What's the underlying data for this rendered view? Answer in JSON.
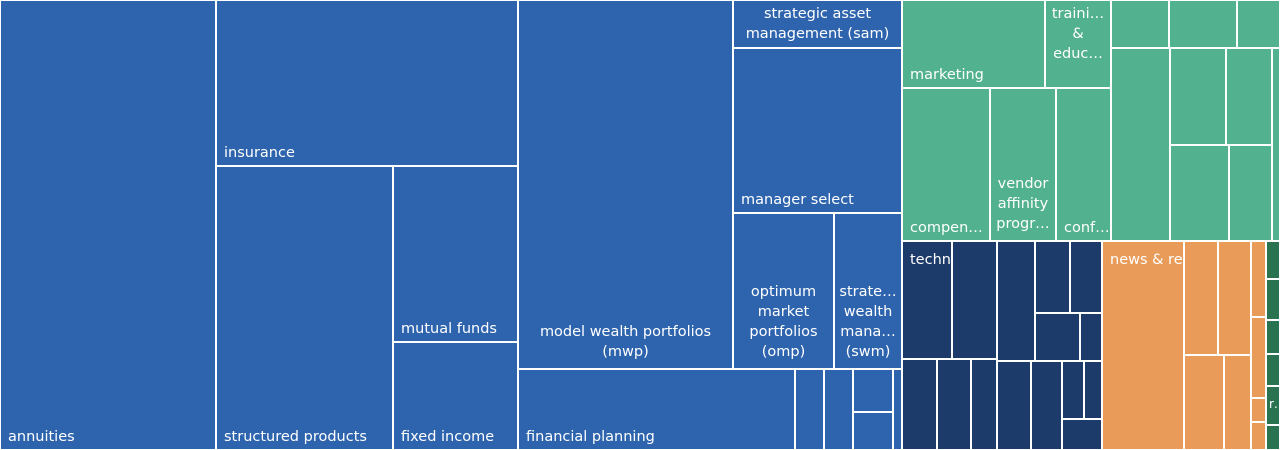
{
  "colors": {
    "financial_services": "#2e64ae",
    "marketing_group": "#52b18f",
    "technology_group": "#1c3a6a",
    "news_research_group": "#e99c5a",
    "other_group": "#2a7350"
  },
  "chart_data": {
    "type": "treemap",
    "title": "",
    "groups": [
      {
        "key": "financial_services",
        "label": "",
        "items": [
          {
            "label": "annuities"
          },
          {
            "label": "insurance"
          },
          {
            "label": "structured products"
          },
          {
            "label": "mutual funds"
          },
          {
            "label": "fixed income"
          },
          {
            "label": "model wealth portfolios (mwp)"
          },
          {
            "label": "financial planning"
          },
          {
            "label": "strategic asset management (sam)"
          },
          {
            "label": "manager select"
          },
          {
            "label": "optimum market portfolios (omp)"
          },
          {
            "label": "strate… wealth mana… (swm)"
          },
          {
            "label": ""
          },
          {
            "label": ""
          },
          {
            "label": ""
          },
          {
            "label": ""
          },
          {
            "label": ""
          }
        ]
      },
      {
        "key": "marketing_group",
        "label": "",
        "items": [
          {
            "label": "marketing"
          },
          {
            "label": "traini… & educ…"
          },
          {
            "label": "compen…"
          },
          {
            "label": "vendor affinity progr…"
          },
          {
            "label": "conf…"
          },
          {
            "label": ""
          },
          {
            "label": ""
          },
          {
            "label": ""
          },
          {
            "label": ""
          },
          {
            "label": ""
          },
          {
            "label": ""
          },
          {
            "label": ""
          },
          {
            "label": ""
          },
          {
            "label": ""
          }
        ]
      },
      {
        "key": "technology_group",
        "label": "technology",
        "items": [
          {
            "label": ""
          },
          {
            "label": ""
          },
          {
            "label": ""
          },
          {
            "label": ""
          },
          {
            "label": ""
          },
          {
            "label": ""
          },
          {
            "label": ""
          },
          {
            "label": ""
          },
          {
            "label": ""
          },
          {
            "label": ""
          },
          {
            "label": ""
          },
          {
            "label": ""
          },
          {
            "label": ""
          },
          {
            "label": ""
          },
          {
            "label": ""
          }
        ]
      },
      {
        "key": "news_research_group",
        "label": "news & research",
        "items": [
          {
            "label": ""
          },
          {
            "label": ""
          },
          {
            "label": ""
          },
          {
            "label": ""
          },
          {
            "label": ""
          },
          {
            "label": ""
          },
          {
            "label": ""
          },
          {
            "label": ""
          },
          {
            "label": ""
          }
        ]
      },
      {
        "key": "other_group",
        "label": "",
        "items": [
          {
            "label": ""
          },
          {
            "label": ""
          },
          {
            "label": ""
          },
          {
            "label": ""
          },
          {
            "label": "r…"
          },
          {
            "label": ""
          }
        ]
      }
    ]
  }
}
